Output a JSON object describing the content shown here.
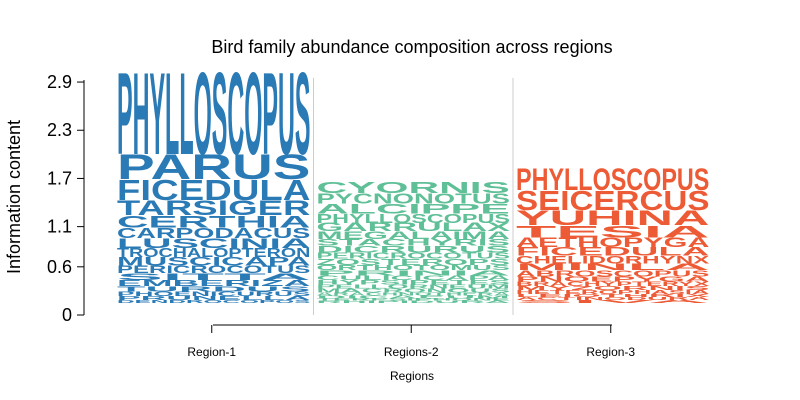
{
  "chart_data": {
    "type": "sequence-logo-bar",
    "title": "Bird family abundance composition across regions",
    "xlabel": "Regions",
    "ylabel": "Information content",
    "ylim": [
      0,
      3.05
    ],
    "yticks": [
      0,
      0.6,
      1.1,
      1.7,
      2.3,
      2.9
    ],
    "ytick_labels": [
      "0",
      "0.6",
      "1.1",
      "1.7",
      "2.3",
      "2.9"
    ],
    "categories": [
      "Region-1",
      "Regions-2",
      "Region-3"
    ],
    "colors": [
      "#2a7ab5",
      "#5fbf97",
      "#ec5b36"
    ],
    "stacks": [
      {
        "category": "Region-1",
        "total": 3.05,
        "words": [
          {
            "label": "PHYLLOSCOPUS",
            "height": 1.1
          },
          {
            "label": "PARUS",
            "height": 0.33
          },
          {
            "label": "FICEDULA",
            "height": 0.27
          },
          {
            "label": "TARSIGER",
            "height": 0.2
          },
          {
            "label": "CERTHIA",
            "height": 0.16
          },
          {
            "label": "CARPODACUS",
            "height": 0.14
          },
          {
            "label": "LUSCINIA",
            "height": 0.13
          },
          {
            "label": "TROCHALOPTERON",
            "height": 0.12
          },
          {
            "label": "MUSCICAPA",
            "height": 0.11
          },
          {
            "label": "PERICROCOTUS",
            "height": 0.1
          },
          {
            "label": "SITTA",
            "height": 0.09
          },
          {
            "label": "EMBERIZA",
            "height": 0.08
          },
          {
            "label": "TURDUS",
            "height": 0.07
          },
          {
            "label": "PHOENICURUS",
            "height": 0.06
          },
          {
            "label": "PRUNELLA",
            "height": 0.05
          },
          {
            "label": "DENDROCOPOS",
            "height": 0.04
          }
        ]
      },
      {
        "category": "Regions-2",
        "total": 1.62,
        "words": [
          {
            "label": "CYORNIS",
            "height": 0.15
          },
          {
            "label": "PYCNONOTUS",
            "height": 0.14
          },
          {
            "label": "ALCIPPE",
            "height": 0.13
          },
          {
            "label": "PHYLLOSCOPUS",
            "height": 0.12
          },
          {
            "label": "GARRULAX",
            "height": 0.11
          },
          {
            "label": "MEGALAIMA",
            "height": 0.1
          },
          {
            "label": "STACHYRIS",
            "height": 0.09
          },
          {
            "label": "DICRURUS",
            "height": 0.09
          },
          {
            "label": "PERICROCOTUS",
            "height": 0.08
          },
          {
            "label": "ZOSTEROPS",
            "height": 0.08
          },
          {
            "label": "ORTHOTOMUS",
            "height": 0.07
          },
          {
            "label": "PRINIA",
            "height": 0.07
          },
          {
            "label": "CULICICAPA",
            "height": 0.06
          },
          {
            "label": "HYPSIPETES",
            "height": 0.06
          },
          {
            "label": "PELLORNEUM",
            "height": 0.05
          },
          {
            "label": "MACRONOUS",
            "height": 0.05
          },
          {
            "label": "ARACHNOTHERA",
            "height": 0.04
          },
          {
            "label": "DICAEUM",
            "height": 0.04
          },
          {
            "label": "TERPSIPHONE",
            "height": 0.03
          },
          {
            "label": "RHIPIDURA",
            "height": 0.03
          }
        ]
      },
      {
        "category": "Region-3",
        "total": 1.8,
        "words": [
          {
            "label": "PHYLLOSCOPUS",
            "height": 0.3
          },
          {
            "label": "SEICERCUS",
            "height": 0.26
          },
          {
            "label": "YUHINA",
            "height": 0.2
          },
          {
            "label": "TESIA",
            "height": 0.16
          },
          {
            "label": "AETHOPYGA",
            "height": 0.13
          },
          {
            "label": "FICEDULA",
            "height": 0.11
          },
          {
            "label": "CHELIDORHYNX",
            "height": 0.1
          },
          {
            "label": "MINLA",
            "height": 0.09
          },
          {
            "label": "ABROSCOPUS",
            "height": 0.08
          },
          {
            "label": "PNOEPYGA",
            "height": 0.07
          },
          {
            "label": "BRACHYPTERYX",
            "height": 0.06
          },
          {
            "label": "MYZORNIS",
            "height": 0.05
          },
          {
            "label": "HETEROPHASIA",
            "height": 0.05
          },
          {
            "label": "LEIOTHRIX",
            "height": 0.04
          },
          {
            "label": "ACTINODURA",
            "height": 0.04
          },
          {
            "label": "SIVA",
            "height": 0.04
          }
        ]
      }
    ]
  }
}
